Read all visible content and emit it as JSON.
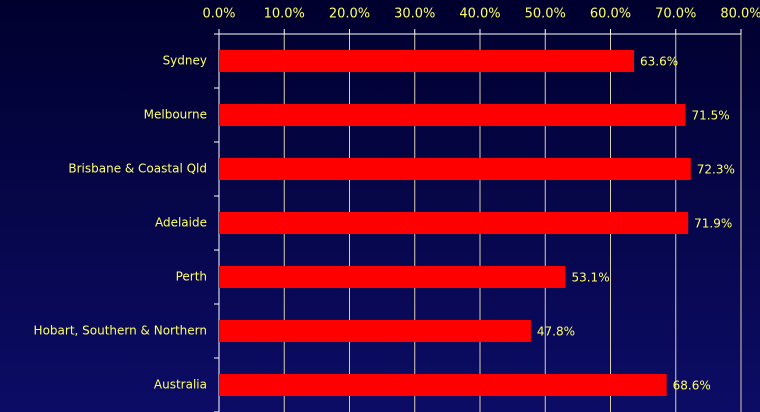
{
  "chart_data": {
    "type": "bar",
    "orientation": "horizontal",
    "categories": [
      "Sydney",
      "Melbourne",
      "Brisbane & Coastal Qld",
      "Adelaide",
      "Perth",
      "Hobart, Southern & Northern",
      "Australia"
    ],
    "values": [
      63.6,
      71.5,
      72.3,
      71.9,
      53.1,
      47.8,
      68.6
    ],
    "value_labels": [
      "63.6%",
      "71.5%",
      "72.3%",
      "71.9%",
      "53.1%",
      "47.8%",
      "68.6%"
    ],
    "color": "#ff0000",
    "xlim": [
      0,
      80
    ],
    "xticks": [
      {
        "value": 0,
        "label": "0.0%"
      },
      {
        "value": 10,
        "label": "10.0%"
      },
      {
        "value": 20,
        "label": "20.0%"
      },
      {
        "value": 30,
        "label": "30.0%"
      },
      {
        "value": 40,
        "label": "40.0%"
      },
      {
        "value": 50,
        "label": "50.0%"
      },
      {
        "value": 60,
        "label": "60.0%"
      },
      {
        "value": 70,
        "label": "70.0%"
      },
      {
        "value": 80,
        "label": "80.0%"
      }
    ],
    "grid": true
  }
}
